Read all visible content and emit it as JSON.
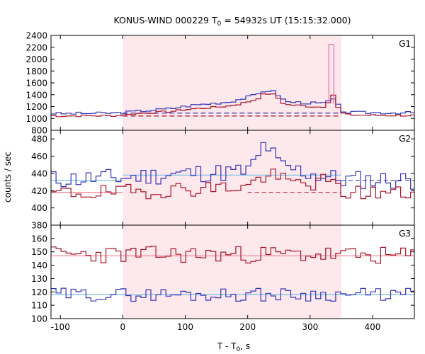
{
  "chart_data": {
    "type": "line",
    "title_main": "KONUS-WIND 000229 T",
    "title_sub": "0",
    "title_rest": " = 54932s UT (15:15:32.000)",
    "xlabel_main": "T - T",
    "xlabel_sub": "0",
    "xlabel_rest": ", s",
    "ylabel": "counts / sec",
    "xlim": [
      -115,
      467
    ],
    "xticks": [
      -100,
      0,
      100,
      200,
      300,
      400
    ],
    "shaded_interval": [
      0,
      350
    ],
    "colors": {
      "red": "#aa1428",
      "blue": "#3434b8",
      "pink": "#e06cb0",
      "lightblue": "#80c4ea",
      "lightred": "#ee8a9a",
      "shade": "#fde8ec"
    },
    "panels": [
      {
        "label": "G1",
        "ylim": [
          800,
          2400
        ],
        "yticks": [
          800,
          1000,
          1200,
          1400,
          1600,
          1800,
          2000,
          2200,
          2400
        ],
        "bg_blue": 1090,
        "bg_red": 1040,
        "series": [
          {
            "name": "",
            "color": "blue",
            "step": 8,
            "key_x": [
              -115,
              -100,
              -60,
              -20,
              0,
              20,
              50,
              80,
              110,
              140,
              170,
              190,
              200,
              215,
              225,
              235,
              245,
              255,
              265,
              280,
              300,
              320,
              330,
              338,
              345,
              352,
              360,
              380,
              420,
              467
            ],
            "key_y": [
              1090,
              1080,
              1085,
              1090,
              1095,
              1120,
              1140,
              1170,
              1220,
              1250,
              1280,
              1330,
              1360,
              1400,
              1460,
              1470,
              1440,
              1330,
              1280,
              1270,
              1260,
              1250,
              1300,
              1310,
              1220,
              1130,
              1100,
              1100,
              1095,
              1095
            ],
            "jitter": 22,
            "seed": 3
          },
          {
            "name": "",
            "color": "red",
            "step": 8,
            "key_x": [
              -115,
              -100,
              -60,
              -20,
              0,
              20,
              50,
              80,
              110,
              140,
              170,
              190,
              200,
              215,
              225,
              235,
              245,
              255,
              265,
              280,
              300,
              320,
              330,
              334,
              338,
              345,
              352,
              360,
              380,
              420,
              467
            ],
            "key_y": [
              1050,
              1040,
              1045,
              1045,
              1050,
              1080,
              1100,
              1120,
              1160,
              1180,
              1210,
              1250,
              1280,
              1330,
              1400,
              1420,
              1390,
              1270,
              1230,
              1220,
              1200,
              1190,
              1290,
              1680,
              1300,
              1180,
              1090,
              1060,
              1055,
              1050,
              1050
            ],
            "jitter": 16,
            "seed": 7
          }
        ],
        "spike": {
          "x0": 330,
          "x1": 338,
          "peak": 2250,
          "color": "pink"
        }
      },
      {
        "label": "G2",
        "ylim": [
          380,
          490
        ],
        "yticks": [
          380,
          400,
          420,
          440,
          460,
          480
        ],
        "bg_blue": 432,
        "bg_red": 418,
        "bg_blue_mid": 438,
        "bg_red_mid": 425,
        "series": [
          {
            "name": "",
            "color": "blue",
            "step": 8,
            "key_x": [
              -115,
              0,
              100,
              200,
              215,
              225,
              235,
              245,
              255,
              300,
              350,
              467
            ],
            "key_y": [
              433,
              435,
              440,
              442,
              455,
              472,
              470,
              455,
              448,
              440,
              433,
              432
            ],
            "jitter": 11,
            "seed": 11
          },
          {
            "name": "",
            "color": "red",
            "step": 8,
            "key_x": [
              -115,
              0,
              100,
              200,
              215,
              230,
              245,
              260,
              300,
              330,
              350,
              467
            ],
            "key_y": [
              417,
              418,
              422,
              425,
              432,
              438,
              438,
              430,
              428,
              432,
              418,
              417
            ],
            "jitter": 9,
            "seed": 19
          }
        ]
      },
      {
        "label": "G3",
        "ylim": [
          100,
          170
        ],
        "yticks": [
          100,
          110,
          120,
          130,
          140,
          150,
          160
        ],
        "bg_blue": 118,
        "bg_red": 147,
        "series": [
          {
            "name": "",
            "color": "red",
            "step": 8,
            "key_x": [
              -115,
              0,
              100,
              200,
              300,
              400,
              467
            ],
            "key_y": [
              148,
              148,
              148,
              148,
              148,
              147,
              147
            ],
            "jitter": 6.5,
            "seed": 23
          },
          {
            "name": "",
            "color": "blue",
            "step": 8,
            "key_x": [
              -115,
              0,
              100,
              200,
              300,
              400,
              467
            ],
            "key_y": [
              118,
              118,
              118,
              118,
              118,
              118,
              118
            ],
            "jitter": 5,
            "seed": 29
          }
        ]
      }
    ]
  }
}
